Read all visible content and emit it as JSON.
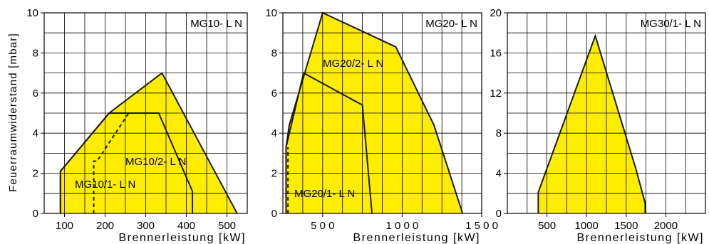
{
  "ylabel": "Feuerraumwiderstand [mbar]",
  "chart_data": [
    {
      "type": "area",
      "title": "MG10- L N",
      "xlabel": "Brennerleistung [kW]",
      "xticks": [
        "100",
        "200",
        "300",
        "400",
        "500"
      ],
      "xtick_values": [
        100,
        200,
        300,
        400,
        500
      ],
      "xlim": [
        50,
        550
      ],
      "ylim": [
        0,
        10
      ],
      "yticks": [
        "0",
        "2",
        "4",
        "6",
        "8",
        "10"
      ],
      "ytick_values": [
        0,
        2,
        4,
        6,
        8,
        10
      ],
      "grid": true,
      "series": [
        {
          "name": "MG10/2- L N",
          "x": [
            90,
            90,
            210,
            340,
            525
          ],
          "y": [
            0,
            2.1,
            5.0,
            7.0,
            0
          ]
        },
        {
          "name": "MG10/1- L N",
          "x": [
            90,
            90,
            210,
            332,
            415,
            415
          ],
          "y": [
            0,
            2.1,
            5.0,
            5.0,
            1.1,
            0
          ]
        }
      ],
      "boundaries": [
        {
          "style": "dashed",
          "x": [
            172,
            172,
            180,
            258
          ],
          "y": [
            0,
            2.6,
            2.6,
            5.0
          ]
        }
      ],
      "labels": [
        "MG10/2- L N",
        "MG10/1- L N"
      ]
    },
    {
      "type": "area",
      "title": "MG20- L N",
      "xlabel": "Brennerleistung [kW]",
      "xticks": [
        "5 0 0",
        "1 0 0 0",
        "1 5 0 0"
      ],
      "xtick_values": [
        500,
        1000,
        1500
      ],
      "xlim": [
        250,
        1500
      ],
      "ylim": [
        0,
        10
      ],
      "yticks": [
        "0",
        "2",
        "4",
        "6",
        "8",
        "10"
      ],
      "ytick_values": [
        0,
        2,
        4,
        6,
        8,
        10
      ],
      "grid": true,
      "series": [
        {
          "name": "MG20/2- L N",
          "x": [
            270,
            270,
            290,
            500,
            960,
            1200,
            1380
          ],
          "y": [
            0,
            3.3,
            4.4,
            10.0,
            8.3,
            4.4,
            0
          ]
        },
        {
          "name": "MG20/1- L N",
          "x": [
            270,
            270,
            380,
            750,
            810
          ],
          "y": [
            0,
            3.3,
            7.0,
            5.4,
            0
          ]
        }
      ],
      "boundaries": [
        {
          "style": "dashed",
          "x": [
            282,
            282
          ],
          "y": [
            0,
            3.3
          ]
        }
      ],
      "labels": [
        "MG20/2- L N",
        "MG20/1- L N"
      ]
    },
    {
      "type": "area",
      "title": "MG30/1- L N",
      "xlabel": "Brennerleistung [kW]",
      "xticks": [
        "500",
        "1000",
        "1500",
        "2000"
      ],
      "xtick_values": [
        500,
        1000,
        1500,
        2000
      ],
      "xlim": [
        0,
        2500
      ],
      "ylim": [
        0,
        20
      ],
      "yticks": [
        "0",
        "4",
        "8",
        "12",
        "16",
        "20"
      ],
      "ytick_values": [
        0,
        4,
        8,
        12,
        16,
        20
      ],
      "grid": true,
      "series": [
        {
          "name": "MG30/1- L N",
          "x": [
            390,
            390,
            1110,
            1620,
            1740,
            1740
          ],
          "y": [
            0,
            2.1,
            17.7,
            4.5,
            1.0,
            0
          ]
        }
      ],
      "boundaries": [],
      "labels": []
    }
  ]
}
